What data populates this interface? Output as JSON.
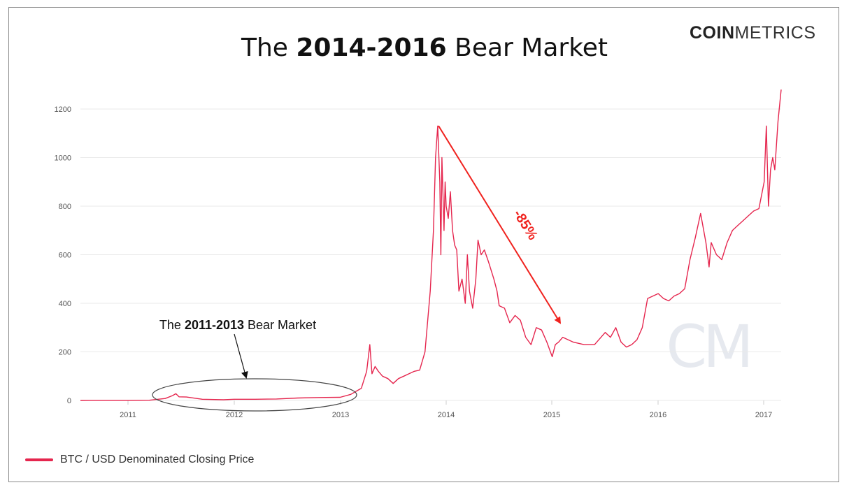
{
  "page": {
    "title_prefix": "The ",
    "title_bold": "2014-2016",
    "title_suffix": " Bear Market",
    "brand_bold": "COIN",
    "brand_light": "METRICS",
    "watermark": "CM"
  },
  "colors": {
    "series": "#e5264e",
    "arrow_red": "#f0231f",
    "arrow_black": "#111111",
    "grid": "#e9e9e9",
    "ellipse": "#444444"
  },
  "chart_data": {
    "type": "line",
    "title": "The 2014-2016 Bear Market",
    "xlabel": "",
    "ylabel": "",
    "ylim": [
      0,
      1300
    ],
    "y_ticks": [
      0,
      200,
      400,
      600,
      800,
      1000,
      1200
    ],
    "x_ticks": [
      "2011",
      "2012",
      "2013",
      "2014",
      "2015",
      "2016",
      "2017"
    ],
    "grid": true,
    "legend_position": "bottom-left",
    "series": [
      {
        "name": "BTC / USD Denominated Closing Price",
        "x": [
          2010.55,
          2010.8,
          2011.0,
          2011.2,
          2011.35,
          2011.42,
          2011.45,
          2011.48,
          2011.55,
          2011.7,
          2011.9,
          2012.0,
          2012.2,
          2012.4,
          2012.6,
          2012.8,
          2013.0,
          2013.1,
          2013.2,
          2013.25,
          2013.28,
          2013.3,
          2013.33,
          2013.36,
          2013.4,
          2013.45,
          2013.5,
          2013.55,
          2013.6,
          2013.65,
          2013.7,
          2013.75,
          2013.8,
          2013.85,
          2013.88,
          2013.9,
          2013.92,
          2013.94,
          2013.95,
          2013.96,
          2013.98,
          2013.99,
          2014.0,
          2014.02,
          2014.04,
          2014.06,
          2014.08,
          2014.1,
          2014.12,
          2014.15,
          2014.18,
          2014.2,
          2014.22,
          2014.25,
          2014.28,
          2014.3,
          2014.33,
          2014.36,
          2014.4,
          2014.45,
          2014.48,
          2014.5,
          2014.55,
          2014.6,
          2014.65,
          2014.7,
          2014.75,
          2014.8,
          2014.85,
          2014.9,
          2014.95,
          2015.0,
          2015.03,
          2015.06,
          2015.1,
          2015.15,
          2015.2,
          2015.3,
          2015.4,
          2015.5,
          2015.55,
          2015.6,
          2015.65,
          2015.7,
          2015.75,
          2015.8,
          2015.85,
          2015.9,
          2015.95,
          2016.0,
          2016.05,
          2016.1,
          2016.15,
          2016.2,
          2016.25,
          2016.3,
          2016.35,
          2016.4,
          2016.45,
          2016.48,
          2016.5,
          2016.53,
          2016.55,
          2016.6,
          2016.65,
          2016.7,
          2016.75,
          2016.8,
          2016.85,
          2016.9,
          2016.95,
          2017.0,
          2017.02,
          2017.04,
          2017.06,
          2017.08,
          2017.1,
          2017.13,
          2017.16
        ],
        "values": [
          0.1,
          0.2,
          0.3,
          1,
          8,
          20,
          28,
          15,
          14,
          5,
          3,
          5,
          5,
          6,
          10,
          12,
          13,
          25,
          50,
          120,
          230,
          110,
          140,
          120,
          100,
          90,
          70,
          90,
          100,
          110,
          120,
          125,
          200,
          450,
          700,
          1000,
          1130,
          900,
          600,
          1000,
          700,
          900,
          800,
          750,
          860,
          700,
          640,
          620,
          450,
          500,
          400,
          600,
          450,
          380,
          500,
          660,
          600,
          620,
          570,
          500,
          450,
          390,
          380,
          320,
          350,
          330,
          260,
          230,
          300,
          290,
          240,
          180,
          230,
          240,
          260,
          250,
          240,
          230,
          230,
          280,
          260,
          300,
          240,
          220,
          230,
          250,
          300,
          420,
          430,
          440,
          420,
          410,
          430,
          440,
          460,
          580,
          670,
          770,
          650,
          550,
          650,
          620,
          600,
          580,
          650,
          700,
          720,
          740,
          760,
          780,
          790,
          900,
          1130,
          800,
          950,
          1000,
          950,
          1150,
          1280
        ]
      }
    ],
    "annotations": [
      {
        "text_prefix": "The ",
        "text_bold": "2011-2013",
        "text_suffix": " Bear Market"
      },
      {
        "text": "-85%"
      }
    ]
  }
}
